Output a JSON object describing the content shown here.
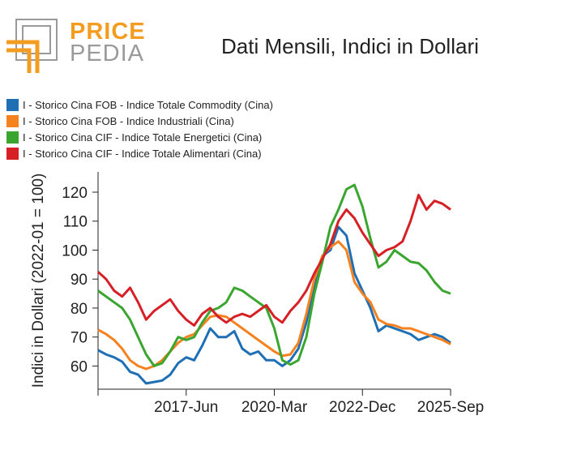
{
  "logo": {
    "word1": "PRICE",
    "word2": "PEDIA"
  },
  "colors": {
    "blue": "#1f6fb5",
    "orange": "#f5811f",
    "green": "#3aa62f",
    "red": "#d62026",
    "logo_orange": "#f39c1f",
    "logo_gray": "#9a9a9a"
  },
  "chart_data": {
    "type": "line",
    "title": "Dati Mensili, Indici in Dollari",
    "ylabel": "Indici in Dollari (2022-01 = 100)",
    "xlabel": "",
    "x_range": [
      "2014-09",
      "2025-09"
    ],
    "ylim": [
      52,
      127
    ],
    "x_ticks": [
      {
        "date": "2017-06",
        "label": "2017-Jun"
      },
      {
        "date": "2020-03",
        "label": "2020-Mar"
      },
      {
        "date": "2022-12",
        "label": "2022-Dec"
      },
      {
        "date": "2025-09",
        "label": "2025-Sep"
      }
    ],
    "y_ticks": [
      60,
      70,
      80,
      90,
      100,
      110,
      120
    ],
    "grid": false,
    "legend_position": "top-left",
    "series": [
      {
        "name": "I - Storico Cina FOB - Indice Totale Commodity (Cina)",
        "color": "#1f6fb5",
        "points": [
          [
            "2014-09",
            65.5
          ],
          [
            "2014-12",
            64
          ],
          [
            "2015-03",
            63
          ],
          [
            "2015-06",
            61.5
          ],
          [
            "2015-09",
            58
          ],
          [
            "2015-12",
            57
          ],
          [
            "2016-03",
            54
          ],
          [
            "2016-06",
            54.5
          ],
          [
            "2016-09",
            55
          ],
          [
            "2016-12",
            57
          ],
          [
            "2017-03",
            61
          ],
          [
            "2017-06",
            63
          ],
          [
            "2017-09",
            62
          ],
          [
            "2017-12",
            67
          ],
          [
            "2018-03",
            73
          ],
          [
            "2018-06",
            70
          ],
          [
            "2018-09",
            70
          ],
          [
            "2018-12",
            72
          ],
          [
            "2019-03",
            66
          ],
          [
            "2019-06",
            64
          ],
          [
            "2019-09",
            65
          ],
          [
            "2019-12",
            62
          ],
          [
            "2020-03",
            62
          ],
          [
            "2020-06",
            60
          ],
          [
            "2020-09",
            62
          ],
          [
            "2020-12",
            66
          ],
          [
            "2021-03",
            75
          ],
          [
            "2021-06",
            88
          ],
          [
            "2021-09",
            98
          ],
          [
            "2021-12",
            100
          ],
          [
            "2022-03",
            108
          ],
          [
            "2022-06",
            105
          ],
          [
            "2022-09",
            92
          ],
          [
            "2022-12",
            86
          ],
          [
            "2023-03",
            80
          ],
          [
            "2023-06",
            72
          ],
          [
            "2023-09",
            74
          ],
          [
            "2023-12",
            73
          ],
          [
            "2024-03",
            72
          ],
          [
            "2024-06",
            71
          ],
          [
            "2024-09",
            69
          ],
          [
            "2024-12",
            70
          ],
          [
            "2025-03",
            71
          ],
          [
            "2025-06",
            70
          ],
          [
            "2025-09",
            68
          ]
        ]
      },
      {
        "name": "I - Storico Cina FOB - Indice Industriali (Cina)",
        "color": "#f5811f",
        "points": [
          [
            "2014-09",
            72.5
          ],
          [
            "2014-12",
            71
          ],
          [
            "2015-03",
            69
          ],
          [
            "2015-06",
            66
          ],
          [
            "2015-09",
            62
          ],
          [
            "2015-12",
            60
          ],
          [
            "2016-03",
            59
          ],
          [
            "2016-06",
            60
          ],
          [
            "2016-09",
            62
          ],
          [
            "2016-12",
            65
          ],
          [
            "2017-03",
            68
          ],
          [
            "2017-06",
            70
          ],
          [
            "2017-09",
            71
          ],
          [
            "2017-12",
            74
          ],
          [
            "2018-03",
            77
          ],
          [
            "2018-06",
            77.5
          ],
          [
            "2018-09",
            77
          ],
          [
            "2018-12",
            75
          ],
          [
            "2019-03",
            73
          ],
          [
            "2019-06",
            71
          ],
          [
            "2019-09",
            69
          ],
          [
            "2019-12",
            67
          ],
          [
            "2020-03",
            65
          ],
          [
            "2020-06",
            63.5
          ],
          [
            "2020-09",
            64
          ],
          [
            "2020-12",
            68
          ],
          [
            "2021-03",
            78
          ],
          [
            "2021-06",
            90
          ],
          [
            "2021-09",
            98
          ],
          [
            "2021-12",
            101
          ],
          [
            "2022-03",
            103
          ],
          [
            "2022-06",
            100
          ],
          [
            "2022-09",
            89
          ],
          [
            "2022-12",
            85
          ],
          [
            "2023-03",
            82
          ],
          [
            "2023-06",
            76
          ],
          [
            "2023-09",
            74.5
          ],
          [
            "2023-12",
            74
          ],
          [
            "2024-03",
            73
          ],
          [
            "2024-06",
            73
          ],
          [
            "2024-09",
            72
          ],
          [
            "2024-12",
            71
          ],
          [
            "2025-03",
            70
          ],
          [
            "2025-06",
            69
          ],
          [
            "2025-09",
            67.5
          ]
        ]
      },
      {
        "name": "I - Storico Cina CIF - Indice Totale Energetici (Cina)",
        "color": "#3aa62f",
        "points": [
          [
            "2014-09",
            86
          ],
          [
            "2014-12",
            84
          ],
          [
            "2015-03",
            82
          ],
          [
            "2015-06",
            80
          ],
          [
            "2015-09",
            76
          ],
          [
            "2015-12",
            70
          ],
          [
            "2016-03",
            64
          ],
          [
            "2016-06",
            60
          ],
          [
            "2016-09",
            61
          ],
          [
            "2016-12",
            65
          ],
          [
            "2017-03",
            70
          ],
          [
            "2017-06",
            69
          ],
          [
            "2017-09",
            70
          ],
          [
            "2017-12",
            75
          ],
          [
            "2018-03",
            79
          ],
          [
            "2018-06",
            80
          ],
          [
            "2018-09",
            82
          ],
          [
            "2018-12",
            87
          ],
          [
            "2019-03",
            86
          ],
          [
            "2019-06",
            84
          ],
          [
            "2019-09",
            82
          ],
          [
            "2019-12",
            80
          ],
          [
            "2020-03",
            73
          ],
          [
            "2020-06",
            62
          ],
          [
            "2020-09",
            60.5
          ],
          [
            "2020-12",
            62
          ],
          [
            "2021-03",
            70
          ],
          [
            "2021-06",
            85
          ],
          [
            "2021-09",
            96
          ],
          [
            "2021-12",
            108
          ],
          [
            "2022-03",
            114
          ],
          [
            "2022-06",
            121
          ],
          [
            "2022-09",
            122.5
          ],
          [
            "2022-12",
            115
          ],
          [
            "2023-03",
            104
          ],
          [
            "2023-06",
            94
          ],
          [
            "2023-09",
            96
          ],
          [
            "2023-12",
            100
          ],
          [
            "2024-03",
            98
          ],
          [
            "2024-06",
            96
          ],
          [
            "2024-09",
            95.5
          ],
          [
            "2024-12",
            93
          ],
          [
            "2025-03",
            89
          ],
          [
            "2025-06",
            86
          ],
          [
            "2025-09",
            85
          ]
        ]
      },
      {
        "name": "I - Storico Cina CIF - Indice Totale Alimentari (Cina)",
        "color": "#d62026",
        "points": [
          [
            "2014-09",
            92.5
          ],
          [
            "2014-12",
            90
          ],
          [
            "2015-03",
            86
          ],
          [
            "2015-06",
            84
          ],
          [
            "2015-09",
            87
          ],
          [
            "2015-12",
            82
          ],
          [
            "2016-03",
            76
          ],
          [
            "2016-06",
            79
          ],
          [
            "2016-09",
            81
          ],
          [
            "2016-12",
            83
          ],
          [
            "2017-03",
            79
          ],
          [
            "2017-06",
            76
          ],
          [
            "2017-09",
            74
          ],
          [
            "2017-12",
            78
          ],
          [
            "2018-03",
            80
          ],
          [
            "2018-06",
            77
          ],
          [
            "2018-09",
            75
          ],
          [
            "2018-12",
            77
          ],
          [
            "2019-03",
            78
          ],
          [
            "2019-06",
            77
          ],
          [
            "2019-09",
            79
          ],
          [
            "2019-12",
            81
          ],
          [
            "2020-03",
            77
          ],
          [
            "2020-06",
            75
          ],
          [
            "2020-09",
            79
          ],
          [
            "2020-12",
            82
          ],
          [
            "2021-03",
            86
          ],
          [
            "2021-06",
            92
          ],
          [
            "2021-09",
            97
          ],
          [
            "2021-12",
            102
          ],
          [
            "2022-03",
            110
          ],
          [
            "2022-06",
            114
          ],
          [
            "2022-09",
            111
          ],
          [
            "2022-12",
            106
          ],
          [
            "2023-03",
            102
          ],
          [
            "2023-06",
            98
          ],
          [
            "2023-09",
            100
          ],
          [
            "2023-12",
            101
          ],
          [
            "2024-03",
            103
          ],
          [
            "2024-06",
            110
          ],
          [
            "2024-09",
            119
          ],
          [
            "2024-12",
            114
          ],
          [
            "2025-03",
            117
          ],
          [
            "2025-06",
            116
          ],
          [
            "2025-09",
            114
          ]
        ]
      }
    ]
  }
}
